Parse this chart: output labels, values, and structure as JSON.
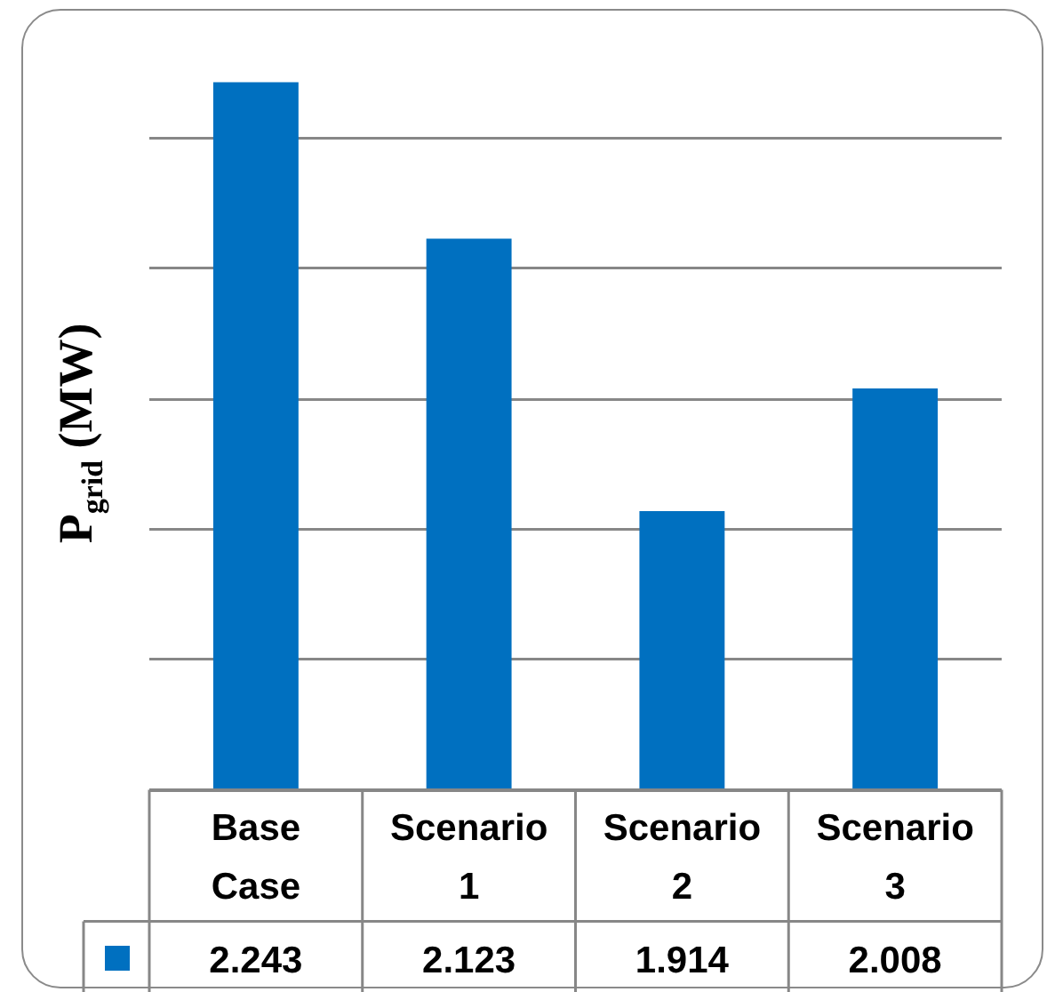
{
  "chart_data": {
    "type": "bar",
    "ylabel": "P$_{grid}$ (MW)",
    "categories": [
      "Base Case",
      "Scenario 1",
      "Scenario 2",
      "Scenario 3"
    ],
    "values": [
      2.243,
      2.123,
      1.914,
      2.008
    ],
    "color": "#0070c0",
    "ylim": [
      1.7,
      2.3
    ],
    "yticks": [
      {
        "value": 1.7,
        "label": null
      },
      {
        "value": 1.8,
        "label": null
      },
      {
        "value": 1.9,
        "label": null
      },
      {
        "value": 2.0,
        "label": null
      },
      {
        "value": 2.1,
        "label": null
      },
      {
        "value": 2.2,
        "label": null
      }
    ],
    "grid": "y",
    "tick_labels": "x",
    "data_labels": true
  }
}
